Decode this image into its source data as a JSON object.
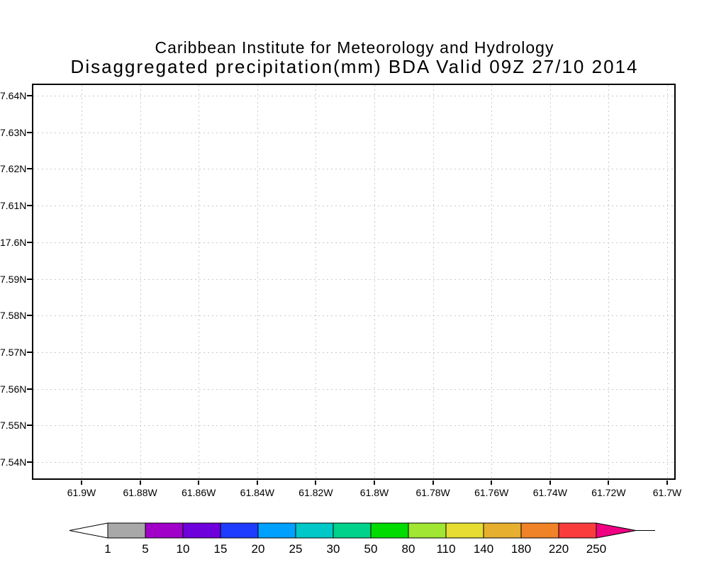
{
  "header": {
    "line1": "Caribbean Institute for Meteorology and Hydrology",
    "line2": "Disaggregated precipitation(mm) BDA Valid 09Z 27/10 2014"
  },
  "chart_data": {
    "type": "heatmap",
    "title": "Caribbean Institute for Meteorology and Hydrology",
    "subtitle": "Disaggregated precipitation(mm) BDA Valid 09Z 27/10 2014",
    "grid": "dotted",
    "x_axis": {
      "tick_labels": [
        "61.9W",
        "61.88W",
        "61.86W",
        "61.84W",
        "61.82W",
        "61.8W",
        "61.78W",
        "61.76W",
        "61.74W",
        "61.72W",
        "61.7W"
      ]
    },
    "y_axis": {
      "tick_labels": [
        "7.64N",
        "7.63N",
        "7.62N",
        "7.61N",
        "17.6N",
        "7.59N",
        "7.58N",
        "7.57N",
        "7.56N",
        "7.55N",
        "7.54N"
      ]
    },
    "field": {
      "values": []
    },
    "colorbar": {
      "tick_labels": [
        "1",
        "5",
        "10",
        "15",
        "20",
        "25",
        "30",
        "50",
        "80",
        "110",
        "140",
        "180",
        "220",
        "250"
      ],
      "levels": [
        1,
        5,
        10,
        15,
        20,
        25,
        30,
        50,
        80,
        110,
        140,
        180,
        220,
        250
      ],
      "segment_colors": [
        "#a8a8a8",
        "#a000c8",
        "#6e00dc",
        "#1e3cff",
        "#00a0ff",
        "#00c8c8",
        "#00d28c",
        "#00dc00",
        "#a0e632",
        "#e6dc32",
        "#e6af2d",
        "#f08228",
        "#fa3c3c"
      ],
      "below_arrow_color": "#ffffff",
      "above_arrow_color": "#f00082"
    },
    "colors": {
      "axis": "#000000",
      "gridline": "#c9c9c9",
      "background": "#ffffff"
    }
  }
}
